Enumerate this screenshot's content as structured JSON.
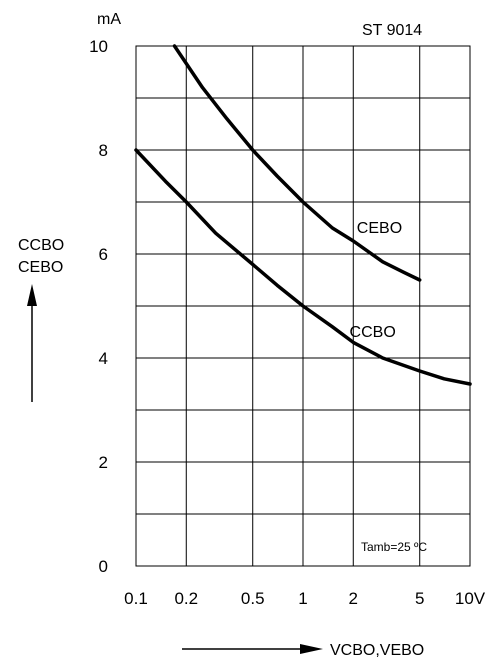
{
  "chart_data": {
    "type": "line",
    "title": "ST 9014",
    "x_scale": "log",
    "x_ticks": [
      "0.1",
      "0.2",
      "0.5",
      "1",
      "2",
      "5",
      "10V"
    ],
    "x_tick_values": [
      0.1,
      0.2,
      0.5,
      1,
      2,
      5,
      10
    ],
    "xlim": [
      0.1,
      10
    ],
    "xlabel": "VCBO,VEBO",
    "y_unit": "mA",
    "y_ticks": [
      "0",
      "2",
      "4",
      "6",
      "8",
      "10"
    ],
    "ylim": [
      0,
      10
    ],
    "ylabel_lines": [
      "CCBO",
      "CEBO"
    ],
    "grid": true,
    "annotation": "Tamb=25 ºC",
    "series": [
      {
        "name": "CEBO",
        "x": [
          0.17,
          0.25,
          0.35,
          0.5,
          0.7,
          1.0,
          1.5,
          2.0,
          3.0,
          4.0,
          5.0
        ],
        "y": [
          10.0,
          9.2,
          8.6,
          8.0,
          7.5,
          7.0,
          6.5,
          6.25,
          5.85,
          5.65,
          5.5
        ]
      },
      {
        "name": "CCBO",
        "x": [
          0.1,
          0.15,
          0.2,
          0.3,
          0.5,
          0.7,
          1.0,
          1.5,
          2.0,
          3.0,
          5.0,
          7.0,
          10.0
        ],
        "y": [
          8.0,
          7.4,
          7.0,
          6.4,
          5.8,
          5.4,
          5.0,
          4.6,
          4.3,
          4.0,
          3.75,
          3.6,
          3.5
        ]
      }
    ]
  }
}
